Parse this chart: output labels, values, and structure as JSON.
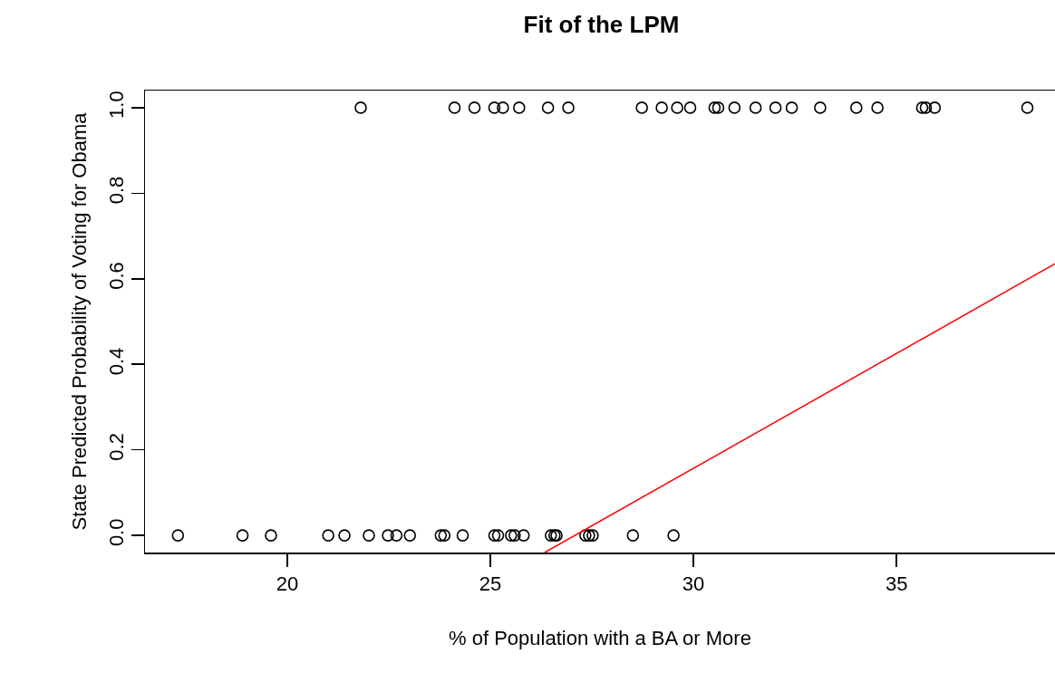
{
  "chart_data": {
    "type": "scatter",
    "title": "Fit of the LPM",
    "xlabel": "% of Population with a BA or More",
    "ylabel": "State Predicted Probability of Voting for Obama",
    "xlim": [
      16.5,
      38.9
    ],
    "xticks": [
      20,
      25,
      30,
      35
    ],
    "ylim": [
      -0.04,
      1.04
    ],
    "yticks": [
      {
        "value": 0,
        "label": "0.0"
      },
      {
        "value": 0.2,
        "label": "0.2"
      },
      {
        "value": 0.4,
        "label": "0.4"
      },
      {
        "value": 0.6,
        "label": "0.6"
      },
      {
        "value": 0.8,
        "label": "0.8"
      },
      {
        "value": 1,
        "label": "1.0"
      }
    ],
    "grid": false,
    "series": [
      {
        "marker": "circle",
        "color": "#000000",
        "x": [
          21.81,
          24.12,
          24.61,
          25.1,
          25.31,
          25.71,
          26.42,
          26.92,
          28.73,
          29.22,
          29.6,
          29.92,
          30.52,
          30.61,
          31.01,
          31.53,
          32.02,
          32.42,
          33.12,
          34.01,
          34.53,
          35.63,
          35.72,
          35.94,
          38.22,
          17.31,
          18.9,
          19.6,
          21.01,
          21.41,
          22.01,
          22.48,
          22.69,
          23.02,
          23.78,
          23.87,
          24.32,
          25.1,
          25.19,
          25.51,
          25.6,
          25.82,
          26.49,
          26.58,
          26.63,
          27.34,
          27.43,
          27.52,
          28.51,
          29.51
        ],
        "values": [
          1,
          1,
          1,
          1,
          1,
          1,
          1,
          1,
          1,
          1,
          1,
          1,
          1,
          1,
          1,
          1,
          1,
          1,
          1,
          1,
          1,
          1,
          1,
          1,
          1,
          0,
          0,
          0,
          0,
          0,
          0,
          0,
          0,
          0,
          0,
          0,
          0,
          0,
          0,
          0,
          0,
          0,
          0,
          0,
          0,
          0,
          0,
          0,
          0,
          0
        ]
      },
      {
        "type": "line",
        "marker": "none",
        "color": "#ff0000",
        "line_style": "solid",
        "x": [
          26.34,
          38.9
        ],
        "values": [
          -0.04,
          0.635
        ]
      }
    ]
  }
}
